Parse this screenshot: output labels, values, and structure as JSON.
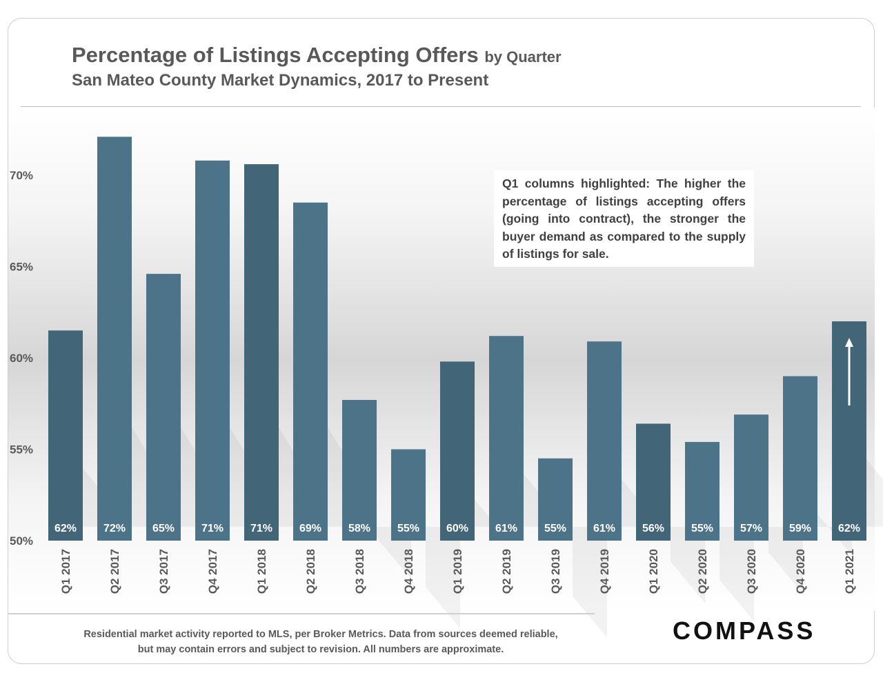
{
  "header": {
    "title": "Percentage of Listings Accepting Offers",
    "title_suffix": "by Quarter",
    "subtitle": "San Mateo County Market Dynamics, 2017 to Present"
  },
  "annotation": "Q1 columns highlighted: The higher the percentage of listings accepting offers (going into contract), the stronger the buyer demand as compared to the supply of listings for sale.",
  "footer": {
    "disclaimer": "Residential market activity reported to MLS, per Broker Metrics. Data from sources deemed reliable, but may contain errors and subject to revision. All numbers are approximate.",
    "logo": "COMPASS"
  },
  "colors": {
    "q1_bar": "#426578",
    "other_bar": "#4d7389",
    "label_text": "#ffffff",
    "tick_text": "#595959"
  },
  "chart_data": {
    "type": "bar",
    "title": "Percentage of Listings Accepting Offers by Quarter",
    "subtitle": "San Mateo County Market Dynamics, 2017 to Present",
    "xlabel": "",
    "ylabel": "",
    "ylim": [
      50,
      72.5
    ],
    "yticks": [
      50,
      55,
      60,
      65,
      70
    ],
    "ytick_labels": [
      "50%",
      "55%",
      "60%",
      "65%",
      "70%"
    ],
    "grid": false,
    "categories": [
      "Q1 2017",
      "Q2 2017",
      "Q3 2017",
      "Q4 2017",
      "Q1 2018",
      "Q2 2018",
      "Q3 2018",
      "Q4 2018",
      "Q1 2019",
      "Q2 2019",
      "Q3 2019",
      "Q4 2019",
      "Q1 2020",
      "Q2 2020",
      "Q3 2020",
      "Q4 2020",
      "Q1 2021"
    ],
    "values": [
      61.5,
      72.1,
      64.6,
      70.8,
      70.6,
      68.5,
      57.7,
      55.0,
      59.8,
      61.2,
      54.5,
      60.9,
      56.4,
      55.4,
      56.9,
      59.0,
      62.0
    ],
    "data_labels": [
      "62%",
      "72%",
      "65%",
      "71%",
      "71%",
      "69%",
      "58%",
      "55%",
      "60%",
      "61%",
      "55%",
      "61%",
      "56%",
      "55%",
      "57%",
      "59%",
      "62%"
    ],
    "highlighted": [
      true,
      false,
      false,
      false,
      true,
      false,
      false,
      false,
      true,
      false,
      false,
      false,
      true,
      false,
      false,
      false,
      true
    ],
    "arrow_on": "Q1 2021"
  }
}
